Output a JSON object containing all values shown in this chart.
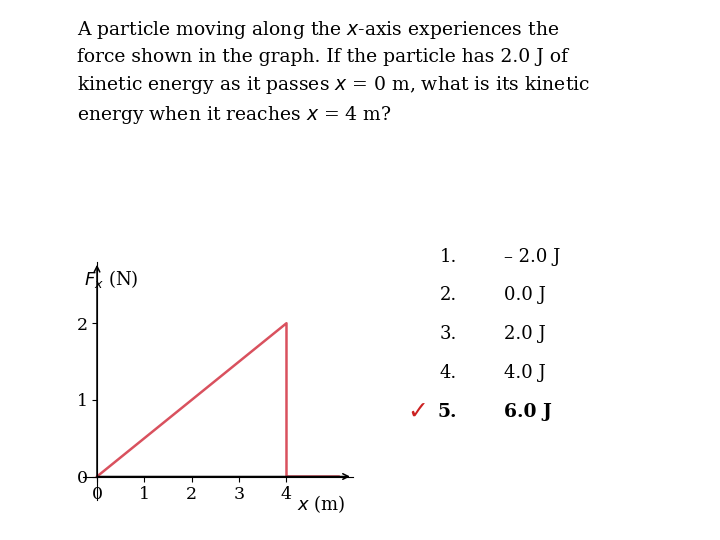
{
  "background_color": "#ffffff",
  "text_lines": "A particle moving along the $x$-axis experiences the\nforce shown in the graph. If the particle has 2.0 J of\nkinetic energy as it passes $x$ = 0 m, what is its kinetic\nenergy when it reaches $x$ = 4 m?",
  "graph": {
    "xlim": [
      -0.3,
      5.4
    ],
    "ylim": [
      -0.3,
      2.8
    ],
    "xticks": [
      0,
      1,
      2,
      3,
      4
    ],
    "yticks": [
      0,
      1,
      2
    ],
    "xlabel": "$x$ (m)",
    "ylabel_math": "$F_x$ (N)",
    "line_x": [
      0,
      4,
      4,
      5.1
    ],
    "line_y": [
      0,
      2,
      0,
      0
    ],
    "line_color": "#d9515e",
    "line_width": 1.8
  },
  "choices": [
    {
      "num": "1.",
      "text": "– 2.0 J",
      "bold": false
    },
    {
      "num": "2.",
      "text": "0.0 J",
      "bold": false
    },
    {
      "num": "3.",
      "text": "2.0 J",
      "bold": false
    },
    {
      "num": "4.",
      "text": "4.0 J",
      "bold": false
    },
    {
      "num": "5.",
      "text": "6.0 J",
      "bold": true
    }
  ],
  "checkmark_idx": 4,
  "checkmark_color": "#cc2222",
  "text_fontsize": 13.5,
  "tick_fontsize": 12.5,
  "label_fontsize": 13,
  "choice_fontsize": 13
}
